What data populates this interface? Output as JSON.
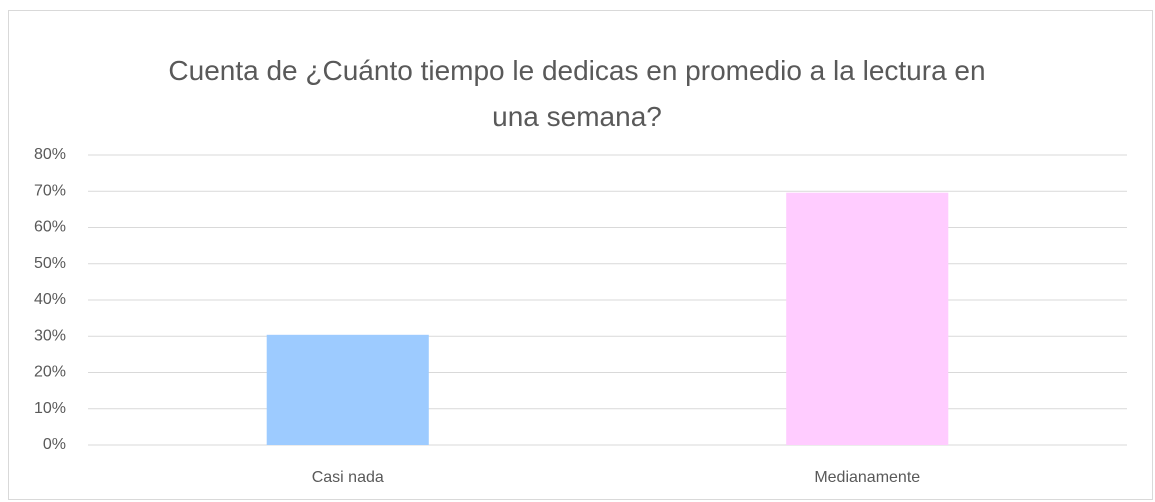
{
  "chart_data": {
    "type": "bar",
    "title": "Cuenta de ¿Cuánto tiempo le dedicas en promedio a la lectura en una semana?",
    "categories": [
      "Casi nada",
      "Medianamente"
    ],
    "values": [
      30.4,
      69.6
    ],
    "colors": [
      "#9dcbff",
      "#ffccff"
    ],
    "ylim": [
      0,
      80
    ],
    "yticks": [
      {
        "value": 0,
        "label": "0%"
      },
      {
        "value": 10,
        "label": "10%"
      },
      {
        "value": 20,
        "label": "20%"
      },
      {
        "value": 30,
        "label": "30%"
      },
      {
        "value": 40,
        "label": "40%"
      },
      {
        "value": 50,
        "label": "50%"
      },
      {
        "value": 60,
        "label": "60%"
      },
      {
        "value": 70,
        "label": "70%"
      },
      {
        "value": 80,
        "label": "80%"
      }
    ],
    "grid": true
  }
}
